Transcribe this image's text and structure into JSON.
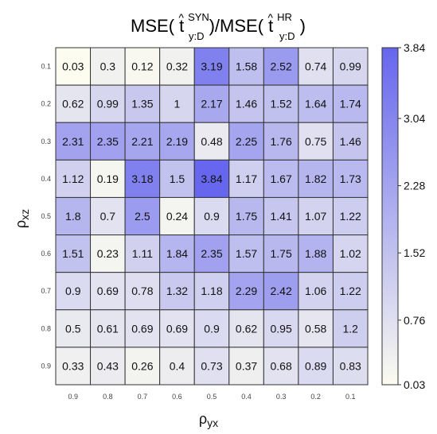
{
  "chart_data": {
    "type": "heatmap",
    "title": {
      "prefix": "MSE(",
      "hat": "^",
      "t1": "t",
      "sup1": "SYN",
      "sub1": "y:D",
      "mid": ")/MSE(",
      "t2": "t",
      "sup2": "HR",
      "sub2": "y:D",
      "suffix": ")"
    },
    "xlabel": {
      "rho": "ρ",
      "sub": "yx"
    },
    "ylabel": {
      "rho": "ρ",
      "sub": "xz"
    },
    "x_ticks": [
      "0.9",
      "0.8",
      "0.7",
      "0.6",
      "0.5",
      "0.4",
      "0.3",
      "0.2",
      "0.1"
    ],
    "y_ticks": [
      "0.1",
      "0.2",
      "0.3",
      "0.4",
      "0.5",
      "0.6",
      "0.7",
      "0.8",
      "0.9"
    ],
    "values": [
      [
        0.03,
        0.3,
        0.12,
        0.32,
        3.19,
        1.58,
        2.52,
        0.74,
        0.99
      ],
      [
        0.62,
        0.99,
        1.35,
        1,
        2.17,
        1.46,
        1.52,
        1.64,
        1.74
      ],
      [
        2.31,
        2.35,
        2.21,
        2.19,
        0.48,
        2.25,
        1.76,
        0.75,
        1.46
      ],
      [
        1.12,
        0.19,
        3.18,
        1.5,
        3.84,
        1.17,
        1.67,
        1.82,
        1.73
      ],
      [
        1.8,
        0.7,
        2.5,
        0.24,
        0.9,
        1.75,
        1.41,
        1.07,
        1.22
      ],
      [
        1.51,
        0.23,
        1.11,
        1.84,
        2.35,
        1.57,
        1.75,
        1.88,
        1.02
      ],
      [
        0.9,
        0.69,
        0.78,
        1.32,
        1.18,
        2.29,
        2.42,
        1.06,
        1.22
      ],
      [
        0.5,
        0.61,
        0.69,
        0.69,
        0.9,
        0.62,
        0.95,
        0.58,
        1.2
      ],
      [
        0.33,
        0.43,
        0.26,
        0.4,
        0.73,
        0.37,
        0.68,
        0.89,
        0.83
      ]
    ],
    "colorbar": {
      "min": 0.03,
      "max": 3.84,
      "ticks": [
        "3.84",
        "3.04",
        "2.28",
        "1.52",
        "0.76",
        "0.03"
      ],
      "low_color": "#fcfcf0",
      "high_color": "#6666ee"
    }
  }
}
